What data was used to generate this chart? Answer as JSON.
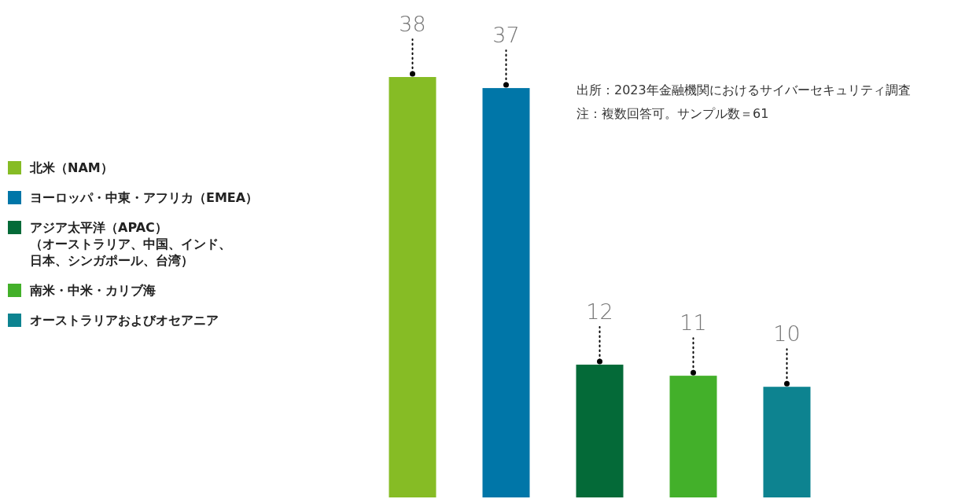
{
  "chart_data": {
    "type": "bar",
    "categories": [
      null,
      null,
      null,
      null,
      null
    ],
    "series": [
      {
        "name": "北米（NAM）",
        "color": "#86bc25",
        "values": [
          38,
          null,
          null,
          null,
          null
        ]
      },
      {
        "name": "ヨーロッパ・中東・アフリカ（EMEA）",
        "color": "#0076a8",
        "values": [
          null,
          37,
          null,
          null,
          null
        ]
      },
      {
        "name": "アジア太平洋（APAC）（オーストラリア、中国、インド、日本、シンガポール、台湾）",
        "color": "#046a38",
        "values": [
          null,
          null,
          12,
          null,
          null
        ]
      },
      {
        "name": "南米・中米・カリブ海",
        "color": "#43b02a",
        "values": [
          null,
          null,
          null,
          11,
          null
        ]
      },
      {
        "name": "オーストラリアおよびオセアニア",
        "color": "#0d8390",
        "values": [
          null,
          null,
          null,
          null,
          10
        ]
      }
    ],
    "stacked": true,
    "data_labels": true,
    "legend": "left",
    "annotations": [
      "出所：2023年金融機関におけるサイバーセキュリティ調査",
      "注：複数回答可。サンプル数＝61"
    ]
  }
}
